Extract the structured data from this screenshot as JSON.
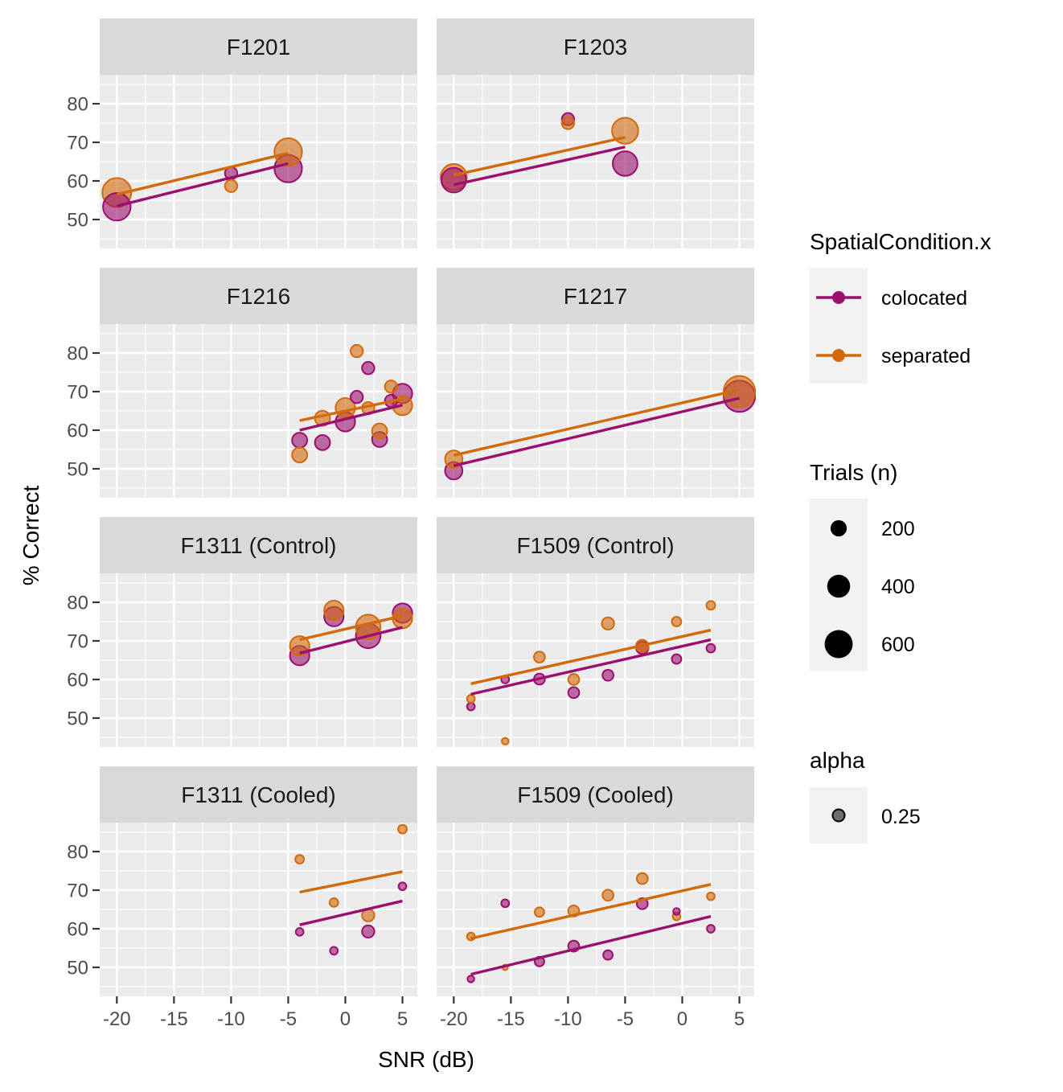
{
  "chart_data": {
    "type": "scatter",
    "xlabel": "SNR (dB)",
    "ylabel": "% Correct",
    "xlim": [
      -21.5,
      6.3
    ],
    "ylim": [
      42.5,
      87.5
    ],
    "x_ticks": [
      -20,
      -15,
      -10,
      -5,
      0,
      5
    ],
    "x_tick_labels": [
      "-20",
      "-15",
      "-10",
      "-5",
      "0",
      "5"
    ],
    "y_ticks": [
      50,
      60,
      70,
      80
    ],
    "y_tick_labels": [
      "50",
      "60",
      "70",
      "80"
    ],
    "grid": true,
    "colors": {
      "colocated": "#9b0f6e",
      "separated": "#d2690a"
    },
    "legend": {
      "placement": "right",
      "color_title": "SpatialCondition.x",
      "color_entries": [
        "colocated",
        "separated"
      ],
      "size_title": "Trials (n)",
      "size_entries": [
        "200",
        "400",
        "600"
      ],
      "size_values": [
        200,
        400,
        600
      ],
      "alpha_title": "alpha",
      "alpha_entries": [
        "0.25"
      ]
    },
    "panels": [
      {
        "title": "F1201",
        "points": {
          "colocated": [
            [
              -20,
              53.3,
              500
            ],
            [
              -10,
              62.0,
              100
            ],
            [
              -5,
              63.2,
              500
            ]
          ],
          "separated": [
            [
              -20,
              57.0,
              550
            ],
            [
              -10,
              58.7,
              100
            ],
            [
              -5,
              67.5,
              500
            ]
          ]
        },
        "fits": {
          "colocated": [
            [
              -20,
              53.5
            ],
            [
              -5,
              64.5
            ]
          ],
          "separated": [
            [
              -20,
              56.5
            ],
            [
              -5,
              67.2
            ]
          ]
        }
      },
      {
        "title": "F1203",
        "points": {
          "colocated": [
            [
              -20,
              60.2,
              400
            ],
            [
              -10,
              76.0,
              100
            ],
            [
              -5,
              64.5,
              400
            ]
          ],
          "separated": [
            [
              -20,
              61.0,
              450
            ],
            [
              -10,
              75.0,
              100
            ],
            [
              -5,
              73.0,
              450
            ]
          ]
        },
        "fits": {
          "colocated": [
            [
              -20,
              59.0
            ],
            [
              -5,
              68.8
            ]
          ],
          "separated": [
            [
              -20,
              61.5
            ],
            [
              -5,
              71.3
            ]
          ]
        }
      },
      {
        "title": "F1216",
        "points": {
          "colocated": [
            [
              -4,
              57.4,
              150
            ],
            [
              -2,
              56.8,
              150
            ],
            [
              0,
              62.2,
              250
            ],
            [
              1,
              68.6,
              100
            ],
            [
              2,
              76.1,
              100
            ],
            [
              3,
              57.6,
              150
            ],
            [
              4,
              67.6,
              100
            ],
            [
              5,
              69.5,
              250
            ]
          ],
          "separated": [
            [
              -4,
              53.6,
              150
            ],
            [
              -2,
              63.1,
              150
            ],
            [
              0,
              65.8,
              250
            ],
            [
              1,
              80.5,
              100
            ],
            [
              2,
              65.7,
              100
            ],
            [
              3,
              59.8,
              150
            ],
            [
              4,
              71.3,
              100
            ],
            [
              5,
              66.4,
              250
            ]
          ]
        },
        "fits": {
          "colocated": [
            [
              -4,
              60.0
            ],
            [
              5,
              66.5
            ]
          ],
          "separated": [
            [
              -4,
              62.5
            ],
            [
              5,
              68.1
            ]
          ]
        }
      },
      {
        "title": "F1217",
        "points": {
          "colocated": [
            [
              -20,
              49.5,
              200
            ],
            [
              5,
              68.8,
              650
            ]
          ],
          "separated": [
            [
              -20,
              52.5,
              200
            ],
            [
              5,
              70.0,
              650
            ]
          ]
        },
        "fits": {
          "colocated": [
            [
              -20,
              50.8
            ],
            [
              5,
              68.3
            ]
          ],
          "separated": [
            [
              -20,
              53.5
            ],
            [
              5,
              70.5
            ]
          ]
        }
      },
      {
        "title": "F1311 (Control)",
        "points": {
          "colocated": [
            [
              -4,
              66.2,
              250
            ],
            [
              -1,
              76.3,
              250
            ],
            [
              2,
              71.3,
              400
            ],
            [
              5,
              77.2,
              250
            ]
          ],
          "separated": [
            [
              -4,
              68.7,
              250
            ],
            [
              -1,
              77.9,
              250
            ],
            [
              2,
              73.6,
              400
            ],
            [
              5,
              75.8,
              250
            ]
          ]
        },
        "fits": {
          "colocated": [
            [
              -4,
              66.8
            ],
            [
              5,
              73.5
            ]
          ],
          "separated": [
            [
              -4,
              70.3
            ],
            [
              5,
              76.5
            ]
          ]
        }
      },
      {
        "title": "F1509 (Control)",
        "points": {
          "colocated": [
            [
              -18.5,
              53.0,
              40
            ],
            [
              -15.5,
              60.0,
              40
            ],
            [
              -12.5,
              60.1,
              80
            ],
            [
              -9.5,
              56.6,
              80
            ],
            [
              -6.5,
              61.1,
              80
            ],
            [
              -3.5,
              68.2,
              100
            ],
            [
              -0.5,
              65.3,
              60
            ],
            [
              2.5,
              68.1,
              50
            ]
          ],
          "separated": [
            [
              -18.5,
              55.0,
              40
            ],
            [
              -15.5,
              44.0,
              30
            ],
            [
              -12.5,
              65.8,
              80
            ],
            [
              -9.5,
              60.0,
              80
            ],
            [
              -6.5,
              74.5,
              100
            ],
            [
              -3.5,
              68.7,
              100
            ],
            [
              -0.5,
              75.0,
              60
            ],
            [
              2.5,
              79.2,
              50
            ]
          ]
        },
        "fits": {
          "colocated": [
            [
              -18.5,
              56.2
            ],
            [
              2.5,
              70.3
            ]
          ],
          "separated": [
            [
              -18.5,
              58.9
            ],
            [
              2.5,
              72.8
            ]
          ]
        }
      },
      {
        "title": "F1311 (Cooled)",
        "points": {
          "colocated": [
            [
              -4,
              59.2,
              40
            ],
            [
              -1,
              54.3,
              40
            ],
            [
              2,
              59.3,
              100
            ],
            [
              5,
              71.0,
              40
            ]
          ],
          "separated": [
            [
              -4,
              78.0,
              50
            ],
            [
              -1,
              66.8,
              50
            ],
            [
              2,
              63.5,
              100
            ],
            [
              5,
              85.8,
              50
            ]
          ]
        },
        "fits": {
          "colocated": [
            [
              -4,
              61.0
            ],
            [
              5,
              67.2
            ]
          ],
          "separated": [
            [
              -4,
              69.5
            ],
            [
              5,
              74.8
            ]
          ]
        }
      },
      {
        "title": "F1509 (Cooled)",
        "points": {
          "colocated": [
            [
              -18.5,
              47.0,
              30
            ],
            [
              -15.5,
              66.6,
              40
            ],
            [
              -12.5,
              51.5,
              60
            ],
            [
              -9.5,
              55.5,
              80
            ],
            [
              -6.5,
              53.2,
              60
            ],
            [
              -3.5,
              66.5,
              80
            ],
            [
              -0.5,
              64.5,
              30
            ],
            [
              2.5,
              60.0,
              40
            ]
          ],
          "separated": [
            [
              -18.5,
              58.0,
              40
            ],
            [
              -15.5,
              50.0,
              20
            ],
            [
              -12.5,
              64.3,
              60
            ],
            [
              -9.5,
              64.6,
              80
            ],
            [
              -6.5,
              68.7,
              80
            ],
            [
              -3.5,
              73.0,
              80
            ],
            [
              -0.5,
              63.2,
              40
            ],
            [
              2.5,
              68.4,
              40
            ]
          ]
        },
        "fits": {
          "colocated": [
            [
              -18.5,
              48.2
            ],
            [
              2.5,
              63.2
            ]
          ],
          "separated": [
            [
              -18.5,
              57.5
            ],
            [
              2.5,
              71.5
            ]
          ]
        }
      }
    ]
  }
}
